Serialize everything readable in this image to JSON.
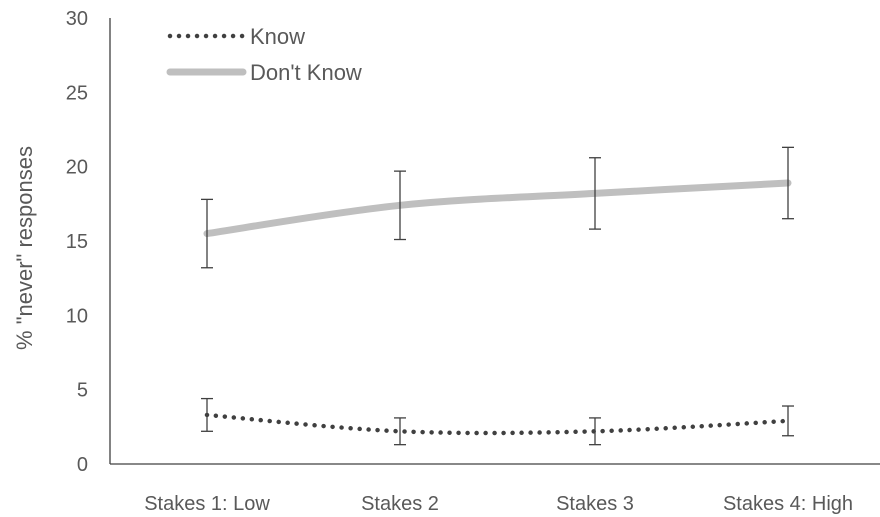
{
  "chart_data": {
    "type": "line",
    "title": "",
    "xlabel": "",
    "ylabel": "% \"never\" responses",
    "ylim": [
      0,
      30
    ],
    "yticks": [
      0,
      5,
      10,
      15,
      20,
      25,
      30
    ],
    "categories": [
      "Stakes 1: Low",
      "Stakes 2",
      "Stakes 3",
      "Stakes 4: High"
    ],
    "grid": false,
    "legend_position": "top-left",
    "series": [
      {
        "name": "Know",
        "values": [
          3.3,
          2.2,
          2.2,
          2.9
        ],
        "error": [
          1.1,
          0.9,
          0.9,
          1.0
        ],
        "style": "dotted",
        "color": "#404040"
      },
      {
        "name": "Don't Know",
        "values": [
          15.5,
          17.4,
          18.2,
          18.9
        ],
        "error": [
          2.3,
          2.3,
          2.4,
          2.4
        ],
        "style": "solid",
        "color": "#bfbfbf"
      }
    ],
    "errorbar_color": "#404040",
    "axis_color": "#404040"
  }
}
